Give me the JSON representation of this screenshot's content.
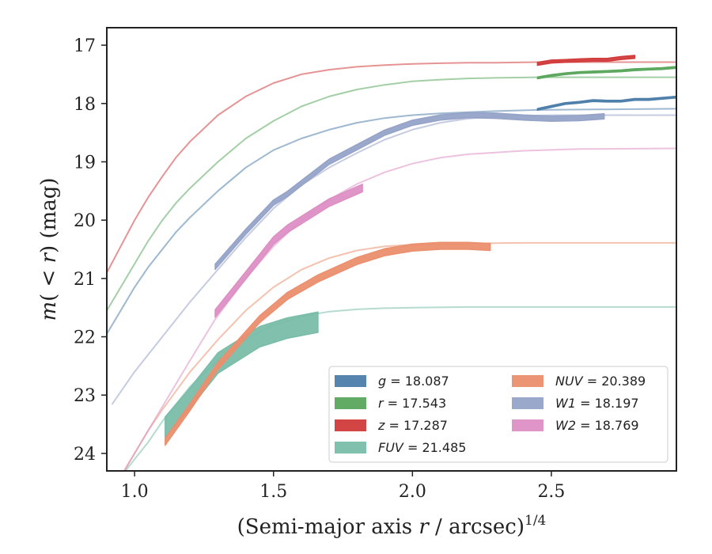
{
  "chart_data": {
    "type": "line",
    "xlabel": "(Semi-major axis r / arcsec)^{1/4}",
    "ylabel": "m(<r) (mag)",
    "xlim": [
      0.9,
      2.95
    ],
    "ylim": [
      24.3,
      16.7
    ],
    "y_inverted": true,
    "x_ticks": [
      "1.0",
      "1.5",
      "2.0",
      "2.5"
    ],
    "y_ticks": [
      "17",
      "18",
      "19",
      "20",
      "21",
      "22",
      "23",
      "24"
    ],
    "grid": false,
    "legend_position": "lower-right",
    "legend_columns": 2,
    "series": [
      {
        "key": "g",
        "name": "g = 18.087",
        "color": "#4c7eaa",
        "asymptote": 18.087,
        "model": {
          "x": [
            0.9,
            0.95,
            1.0,
            1.05,
            1.1,
            1.15,
            1.2,
            1.3,
            1.4,
            1.5,
            1.6,
            1.7,
            1.8,
            1.9,
            2.0,
            2.1,
            2.2,
            2.3,
            2.45,
            2.95
          ],
          "y": [
            21.95,
            21.55,
            21.15,
            20.8,
            20.5,
            20.2,
            19.95,
            19.5,
            19.1,
            18.8,
            18.6,
            18.45,
            18.33,
            18.25,
            18.2,
            18.17,
            18.15,
            18.13,
            18.11,
            18.09
          ]
        },
        "measured": {
          "x": [
            2.45,
            2.5,
            2.55,
            2.6,
            2.65,
            2.7,
            2.75,
            2.8,
            2.85,
            2.9,
            2.95
          ],
          "y": [
            18.1,
            18.05,
            18.0,
            17.98,
            17.95,
            17.96,
            17.96,
            17.93,
            17.93,
            17.91,
            17.89
          ],
          "width": 0.03
        }
      },
      {
        "key": "r",
        "name": "r = 17.543",
        "color": "#5aa75d",
        "asymptote": 17.543,
        "model": {
          "x": [
            0.9,
            0.95,
            1.0,
            1.05,
            1.1,
            1.15,
            1.2,
            1.3,
            1.4,
            1.5,
            1.6,
            1.7,
            1.8,
            1.9,
            2.0,
            2.1,
            2.2,
            2.3,
            2.45,
            2.95
          ],
          "y": [
            21.55,
            21.15,
            20.75,
            20.35,
            20.0,
            19.7,
            19.45,
            19.0,
            18.6,
            18.3,
            18.05,
            17.88,
            17.76,
            17.68,
            17.62,
            17.59,
            17.57,
            17.56,
            17.55,
            17.55
          ]
        },
        "measured": {
          "x": [
            2.45,
            2.5,
            2.55,
            2.6,
            2.65,
            2.7,
            2.75,
            2.8,
            2.85,
            2.9,
            2.95
          ],
          "y": [
            17.56,
            17.52,
            17.49,
            17.47,
            17.46,
            17.45,
            17.44,
            17.42,
            17.41,
            17.4,
            17.38
          ],
          "width": 0.03
        }
      },
      {
        "key": "z",
        "name": "z = 17.287",
        "color": "#d13b3b",
        "asymptote": 17.287,
        "model": {
          "x": [
            0.9,
            0.95,
            1.0,
            1.05,
            1.1,
            1.15,
            1.2,
            1.3,
            1.4,
            1.5,
            1.6,
            1.7,
            1.8,
            1.9,
            2.0,
            2.1,
            2.2,
            2.3,
            2.45,
            2.95
          ],
          "y": [
            20.9,
            20.45,
            20.0,
            19.6,
            19.25,
            18.92,
            18.65,
            18.2,
            17.88,
            17.65,
            17.5,
            17.42,
            17.37,
            17.34,
            17.32,
            17.31,
            17.3,
            17.3,
            17.29,
            17.29
          ]
        },
        "measured": {
          "x": [
            2.45,
            2.5,
            2.55,
            2.6,
            2.65,
            2.7,
            2.75,
            2.8
          ],
          "y": [
            17.32,
            17.28,
            17.27,
            17.26,
            17.25,
            17.25,
            17.22,
            17.2
          ],
          "width": 0.05
        }
      },
      {
        "key": "FUV",
        "name": "FUV = 21.485",
        "color": "#79bda9",
        "asymptote": 21.485,
        "model": {
          "x": [
            0.95,
            1.0,
            1.05,
            1.1,
            1.2,
            1.3,
            1.4,
            1.5,
            1.6,
            1.7,
            1.8,
            1.9,
            2.0,
            2.2,
            2.4,
            2.95
          ],
          "y": [
            24.4,
            24.1,
            23.8,
            23.45,
            22.85,
            22.4,
            22.05,
            21.8,
            21.65,
            21.57,
            21.53,
            21.51,
            21.5,
            21.49,
            21.49,
            21.49
          ]
        },
        "measured": {
          "x": [
            1.11,
            1.2,
            1.3,
            1.45,
            1.55,
            1.66
          ],
          "y": [
            23.55,
            23.05,
            22.45,
            22.0,
            21.85,
            21.75
          ],
          "width": 0.35
        }
      },
      {
        "key": "NUV",
        "name": "NUV = 20.389",
        "color": "#eb8f6e",
        "asymptote": 20.389,
        "model": {
          "x": [
            0.95,
            1.0,
            1.05,
            1.1,
            1.2,
            1.3,
            1.4,
            1.5,
            1.6,
            1.7,
            1.8,
            1.9,
            2.0,
            2.2,
            2.4,
            2.95
          ],
          "y": [
            24.4,
            24.0,
            23.6,
            23.25,
            22.6,
            22.05,
            21.55,
            21.15,
            20.85,
            20.65,
            20.52,
            20.45,
            20.42,
            20.4,
            20.39,
            20.39
          ]
        },
        "measured": {
          "x": [
            1.11,
            1.2,
            1.3,
            1.45,
            1.55,
            1.66,
            1.8,
            1.9,
            2.0,
            2.1,
            2.2,
            2.28
          ],
          "y": [
            23.8,
            23.2,
            22.5,
            21.7,
            21.3,
            21.0,
            20.7,
            20.55,
            20.47,
            20.44,
            20.44,
            20.46
          ],
          "width": 0.12
        }
      },
      {
        "key": "W1",
        "name": "W1 = 18.197",
        "color": "#95a3c8",
        "asymptote": 18.197,
        "model": {
          "x": [
            0.92,
            1.0,
            1.1,
            1.2,
            1.29,
            1.4,
            1.5,
            1.6,
            1.7,
            1.8,
            1.9,
            2.0,
            2.1,
            2.2,
            2.3,
            2.5,
            2.95
          ],
          "y": [
            23.15,
            22.6,
            22.0,
            21.4,
            20.9,
            20.3,
            19.8,
            19.4,
            19.1,
            18.85,
            18.62,
            18.45,
            18.33,
            18.26,
            18.22,
            18.2,
            18.2
          ]
        },
        "measured": {
          "x": [
            1.29,
            1.4,
            1.5,
            1.55,
            1.7,
            1.8,
            1.9,
            2.0,
            2.1,
            2.2,
            2.3,
            2.4,
            2.5,
            2.6,
            2.69
          ],
          "y": [
            20.8,
            20.2,
            19.7,
            19.55,
            19.0,
            18.75,
            18.5,
            18.33,
            18.24,
            18.2,
            18.21,
            18.24,
            18.26,
            18.25,
            18.22
          ],
          "width": 0.09
        }
      },
      {
        "key": "W2",
        "name": "W2 = 18.769",
        "color": "#dd8fc4",
        "asymptote": 18.769,
        "model": {
          "x": [
            0.95,
            1.0,
            1.1,
            1.2,
            1.29,
            1.4,
            1.5,
            1.6,
            1.7,
            1.8,
            1.9,
            2.0,
            2.1,
            2.2,
            2.4,
            2.6,
            2.95
          ],
          "y": [
            24.4,
            24.0,
            23.2,
            22.4,
            21.7,
            21.0,
            20.45,
            20.0,
            19.65,
            19.38,
            19.18,
            19.03,
            18.93,
            18.87,
            18.81,
            18.78,
            18.77
          ]
        },
        "measured": {
          "x": [
            1.29,
            1.4,
            1.5,
            1.55,
            1.7,
            1.82
          ],
          "y": [
            21.6,
            20.95,
            20.35,
            20.15,
            19.7,
            19.45
          ],
          "width": 0.13
        }
      }
    ]
  }
}
